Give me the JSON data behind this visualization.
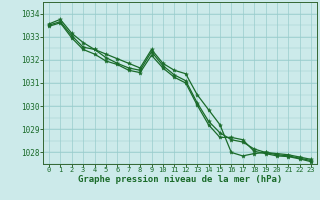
{
  "bg_color": "#cceaea",
  "plot_bg_color": "#cceaea",
  "grid_color": "#99cccc",
  "line_color": "#1a6b2a",
  "marker_color": "#1a6b2a",
  "xlabel": "Graphe pression niveau de la mer (hPa)",
  "xlabel_color": "#1a6b2a",
  "tick_color": "#1a6b2a",
  "spine_color": "#336633",
  "ylim": [
    1027.5,
    1034.5
  ],
  "xlim": [
    -0.5,
    23.5
  ],
  "yticks": [
    1028,
    1029,
    1030,
    1031,
    1032,
    1033,
    1034
  ],
  "xticks": [
    0,
    1,
    2,
    3,
    4,
    5,
    6,
    7,
    8,
    9,
    10,
    11,
    12,
    13,
    14,
    15,
    16,
    17,
    18,
    19,
    20,
    21,
    22,
    23
  ],
  "series": [
    [
      1033.55,
      1033.75,
      1033.15,
      1032.75,
      1032.45,
      1032.25,
      1032.05,
      1031.85,
      1031.65,
      1032.45,
      1031.85,
      1031.55,
      1031.4,
      1030.5,
      1029.85,
      1029.2,
      1028.0,
      1027.85,
      1027.95,
      1028.0,
      1027.95,
      1027.9,
      1027.8,
      1027.7
    ],
    [
      1033.5,
      1033.65,
      1033.05,
      1032.55,
      1032.45,
      1032.1,
      1031.85,
      1031.65,
      1031.55,
      1032.35,
      1031.75,
      1031.35,
      1031.1,
      1030.15,
      1029.35,
      1028.85,
      1028.55,
      1028.45,
      1028.15,
      1028.0,
      1027.9,
      1027.85,
      1027.75,
      1027.65
    ],
    [
      1033.45,
      1033.6,
      1032.95,
      1032.45,
      1032.25,
      1031.95,
      1031.8,
      1031.55,
      1031.45,
      1032.2,
      1031.65,
      1031.25,
      1031.0,
      1030.05,
      1029.2,
      1028.65,
      1028.65,
      1028.55,
      1028.05,
      1027.95,
      1027.85,
      1027.82,
      1027.72,
      1027.6
    ]
  ]
}
